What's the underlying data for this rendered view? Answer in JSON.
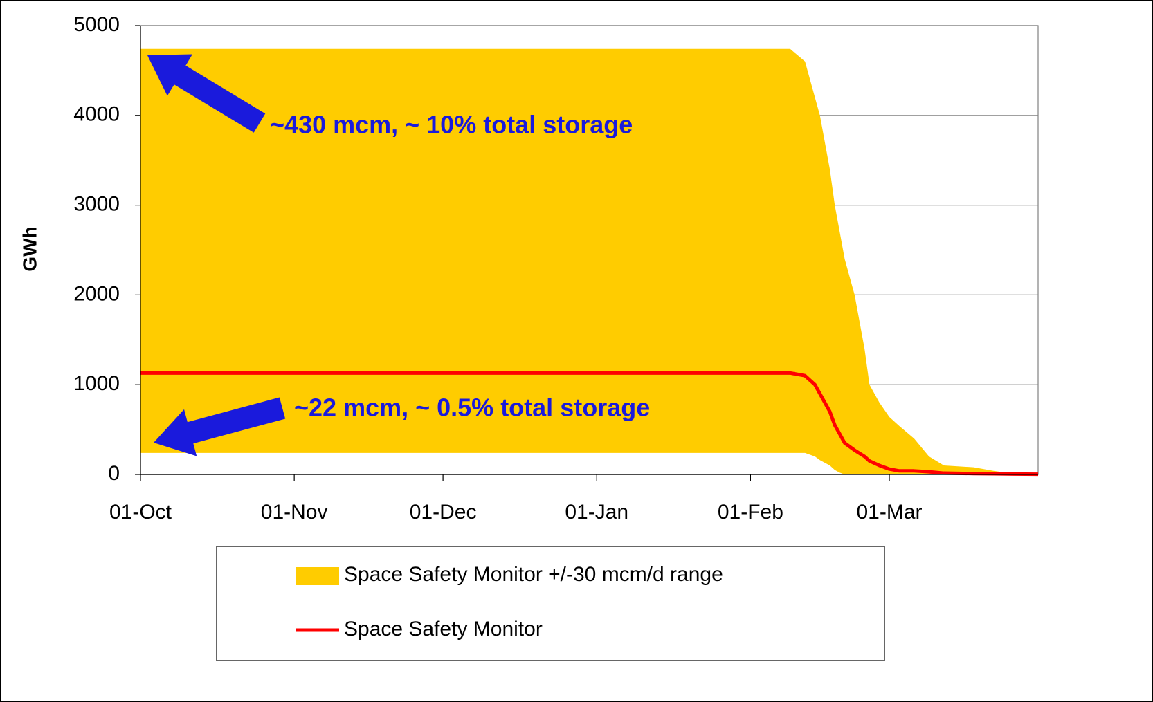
{
  "chart_data": {
    "type": "area-line",
    "ylabel": "GWh",
    "ylim": [
      0,
      5000
    ],
    "yticks": [
      0,
      1000,
      2000,
      3000,
      4000,
      5000
    ],
    "xlim": [
      "01-Oct",
      "31-Mar"
    ],
    "xticks": [
      "01-Oct",
      "01-Nov",
      "01-Dec",
      "01-Jan",
      "01-Feb",
      "01-Mar"
    ],
    "grid": true,
    "x": [
      "01-Oct",
      "09-Feb",
      "12-Feb",
      "14-Feb",
      "15-Feb",
      "17-Feb",
      "18-Feb",
      "19-Feb",
      "20-Feb",
      "22-Feb",
      "24-Feb",
      "25-Feb",
      "27-Feb",
      "01-Mar",
      "03-Mar",
      "06-Mar",
      "09-Mar",
      "12-Mar",
      "18-Mar",
      "22-Mar",
      "26-Mar",
      "31-Mar"
    ],
    "band": {
      "name": "Space Safety Monitor +/-30 mcm/d range",
      "color": "#ffcc00",
      "upper": [
        4740,
        4740,
        4600,
        4200,
        4000,
        3400,
        3000,
        2700,
        2400,
        2000,
        1400,
        1000,
        800,
        640,
        540,
        400,
        200,
        100,
        80,
        40,
        10,
        0
      ],
      "lower": [
        240,
        240,
        240,
        200,
        160,
        100,
        50,
        20,
        0,
        0,
        0,
        0,
        0,
        0,
        0,
        0,
        0,
        0,
        0,
        0,
        0,
        0
      ]
    },
    "series": [
      {
        "name": "Space Safety Monitor",
        "color": "#ff0000",
        "values": [
          1130,
          1130,
          1100,
          1000,
          900,
          700,
          550,
          450,
          350,
          270,
          200,
          150,
          100,
          60,
          40,
          40,
          30,
          15,
          10,
          8,
          5,
          3
        ]
      }
    ],
    "annotations": [
      {
        "text": "~430 mcm, ~ 10% total storage"
      },
      {
        "text": "~22 mcm, ~ 0.5% total storage"
      }
    ]
  }
}
